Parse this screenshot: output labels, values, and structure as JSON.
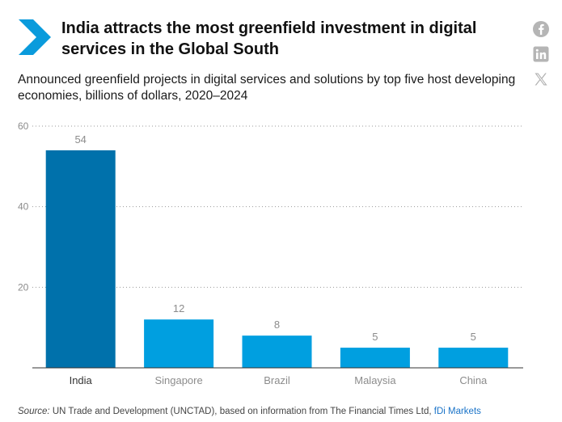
{
  "header": {
    "title": "India attracts the most greenfield investment in digital services in the Global South",
    "subtitle": "Announced greenfield projects in digital services and solutions by top five host developing economies, billions of dollars, 2020–2024"
  },
  "social": [
    {
      "icon": "facebook-icon"
    },
    {
      "icon": "linkedin-icon"
    },
    {
      "icon": "x-icon"
    }
  ],
  "chart_data": {
    "type": "bar",
    "categories": [
      "India",
      "Singapore",
      "Brazil",
      "Malaysia",
      "China"
    ],
    "values": [
      54,
      12,
      8,
      5,
      5
    ],
    "ylim": [
      0,
      60
    ],
    "yticks": [
      20,
      40,
      60
    ],
    "grid": true,
    "highlight_index": 0,
    "colors": {
      "highlight": "#0071ab",
      "bar": "#009fe0",
      "grid": "#9a9a9a",
      "axis": "#333333",
      "tick_label": "#8c8c8c",
      "highlight_label": "#333333"
    }
  },
  "footer": {
    "source_label": "Source:",
    "source_text": " UN Trade and Development (UNCTAD), based on information from The Financial Times Ltd, ",
    "source_link": "fDi Markets"
  },
  "colors": {
    "accent": "#0a9bdc"
  }
}
